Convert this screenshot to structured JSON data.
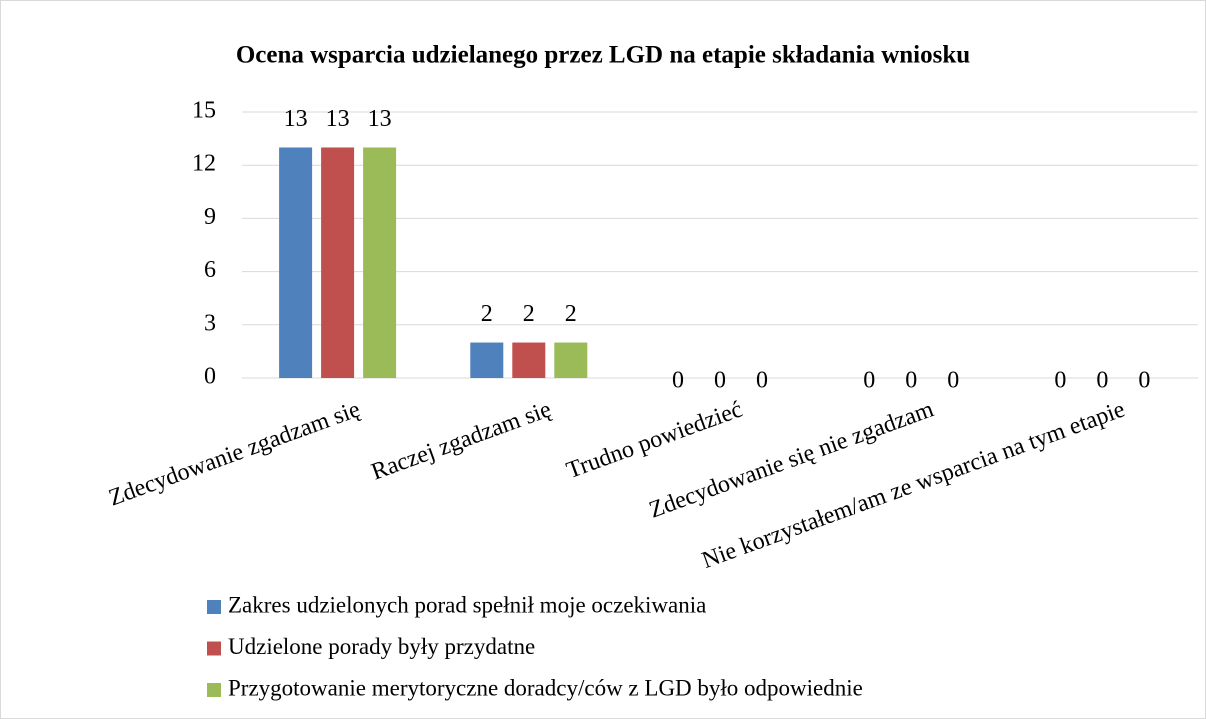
{
  "chart_data": {
    "type": "bar",
    "title": "Ocena wsparcia udzielanego przez LGD na etapie składania wniosku",
    "categories": [
      "Zdecydowanie zgadzam się",
      "Raczej zgadzam się",
      "Trudno powiedzieć",
      "Zdecydowanie się nie zgadzam",
      "Nie korzystałem/am ze wsparcia na tym etapie"
    ],
    "series": [
      {
        "name": "Zakres udzielonych porad spełnił moje oczekiwania",
        "color": "#4f81bd",
        "values": [
          13,
          2,
          0,
          0,
          0
        ]
      },
      {
        "name": "Udzielone porady były przydatne",
        "color": "#c0504d",
        "values": [
          13,
          2,
          0,
          0,
          0
        ]
      },
      {
        "name": "Przygotowanie merytoryczne doradcy/ców z LGD było odpowiednie",
        "color": "#9bbb59",
        "values": [
          13,
          2,
          0,
          0,
          0
        ]
      }
    ],
    "ylim": [
      0,
      15
    ],
    "yticks": [
      0,
      3,
      6,
      9,
      12,
      15
    ],
    "grid": true,
    "legend": "bottom"
  }
}
